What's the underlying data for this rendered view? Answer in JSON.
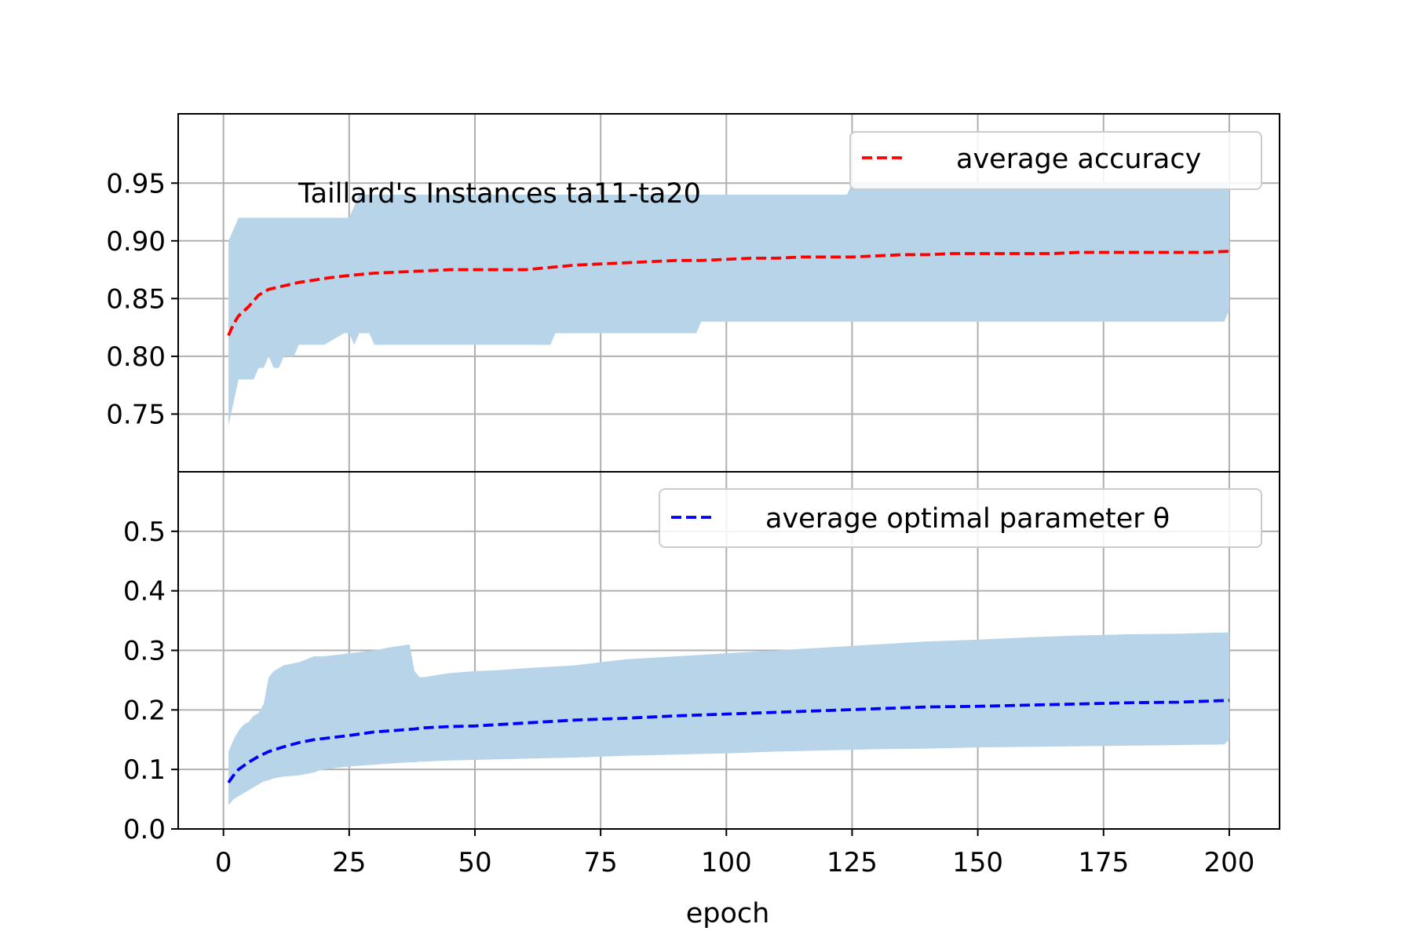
{
  "chart_data": {
    "type": "line",
    "xlabel": "epoch",
    "xlim": [
      -9,
      210
    ],
    "xticks": [
      0,
      25,
      50,
      75,
      100,
      125,
      150,
      175,
      200
    ],
    "xtick_labels": [
      "0",
      "25",
      "50",
      "75",
      "100",
      "125",
      "150",
      "175",
      "200"
    ],
    "grid": true,
    "subplots": [
      {
        "id": "accuracy",
        "annotation": "Taillard's Instances ta11-ta20",
        "ylim": [
          0.7,
          1.01
        ],
        "yticks": [
          0.75,
          0.8,
          0.85,
          0.9,
          0.95
        ],
        "ytick_labels": [
          "0.75",
          "0.80",
          "0.85",
          "0.90",
          "0.95"
        ],
        "legend_position": "upper right",
        "series": [
          {
            "name": "average accuracy",
            "color": "#ff0000",
            "style": "dashed",
            "x": [
              1,
              2,
              3,
              5,
              7,
              9,
              12,
              15,
              18,
              21,
              25,
              30,
              35,
              40,
              45,
              50,
              55,
              60,
              65,
              70,
              75,
              80,
              85,
              90,
              95,
              100,
              105,
              110,
              115,
              120,
              125,
              130,
              135,
              140,
              145,
              150,
              155,
              160,
              165,
              170,
              175,
              180,
              185,
              190,
              195,
              200
            ],
            "y": [
              0.818,
              0.828,
              0.835,
              0.843,
              0.853,
              0.858,
              0.861,
              0.864,
              0.866,
              0.868,
              0.87,
              0.872,
              0.873,
              0.874,
              0.875,
              0.875,
              0.875,
              0.875,
              0.877,
              0.879,
              0.88,
              0.881,
              0.882,
              0.883,
              0.883,
              0.884,
              0.885,
              0.885,
              0.886,
              0.886,
              0.886,
              0.887,
              0.888,
              0.888,
              0.889,
              0.889,
              0.889,
              0.889,
              0.889,
              0.89,
              0.89,
              0.89,
              0.89,
              0.89,
              0.89,
              0.891
            ]
          }
        ],
        "band": {
          "color": "#b8d4e8",
          "x": [
            1,
            2,
            3,
            4,
            6,
            7,
            8,
            9,
            10,
            11,
            12,
            14,
            15,
            16,
            18,
            20,
            24,
            25,
            26,
            27,
            28,
            29,
            30,
            40,
            50,
            60,
            65,
            66,
            67,
            70,
            80,
            90,
            94,
            95,
            100,
            110,
            120,
            124,
            125,
            130,
            150,
            170,
            180,
            190,
            199,
            200
          ],
          "upper": [
            0.9,
            0.91,
            0.92,
            0.92,
            0.92,
            0.92,
            0.92,
            0.92,
            0.92,
            0.92,
            0.92,
            0.92,
            0.92,
            0.92,
            0.92,
            0.92,
            0.92,
            0.92,
            0.93,
            0.94,
            0.94,
            0.94,
            0.94,
            0.94,
            0.94,
            0.94,
            0.94,
            0.94,
            0.94,
            0.94,
            0.94,
            0.94,
            0.94,
            0.94,
            0.94,
            0.94,
            0.94,
            0.94,
            0.95,
            0.95,
            0.95,
            0.95,
            0.95,
            0.95,
            0.95,
            0.95
          ],
          "lower": [
            0.74,
            0.76,
            0.78,
            0.78,
            0.78,
            0.79,
            0.79,
            0.8,
            0.79,
            0.79,
            0.8,
            0.8,
            0.81,
            0.81,
            0.81,
            0.81,
            0.82,
            0.82,
            0.81,
            0.82,
            0.82,
            0.82,
            0.81,
            0.81,
            0.81,
            0.81,
            0.81,
            0.82,
            0.82,
            0.82,
            0.82,
            0.82,
            0.82,
            0.83,
            0.83,
            0.83,
            0.83,
            0.83,
            0.83,
            0.83,
            0.83,
            0.83,
            0.83,
            0.83,
            0.83,
            0.84
          ]
        }
      },
      {
        "id": "theta",
        "ylim": [
          0.0,
          0.6
        ],
        "yticks": [
          0.0,
          0.1,
          0.2,
          0.3,
          0.4,
          0.5
        ],
        "ytick_labels": [
          "0.0",
          "0.1",
          "0.2",
          "0.3",
          "0.4",
          "0.5"
        ],
        "legend_position": "upper right",
        "series": [
          {
            "name": "average optimal parameter θ",
            "color": "#0000ff",
            "style": "dashed",
            "x": [
              1,
              2,
              3,
              5,
              7,
              9,
              12,
              15,
              18,
              21,
              25,
              30,
              35,
              38,
              40,
              45,
              50,
              60,
              70,
              80,
              90,
              100,
              110,
              120,
              130,
              140,
              150,
              160,
              170,
              180,
              190,
              200
            ],
            "y": [
              0.078,
              0.09,
              0.1,
              0.112,
              0.122,
              0.13,
              0.138,
              0.145,
              0.15,
              0.153,
              0.157,
              0.163,
              0.166,
              0.168,
              0.17,
              0.172,
              0.173,
              0.178,
              0.183,
              0.186,
              0.19,
              0.193,
              0.196,
              0.199,
              0.202,
              0.205,
              0.206,
              0.208,
              0.21,
              0.212,
              0.213,
              0.216
            ]
          }
        ],
        "band": {
          "color": "#b8d4e8",
          "x": [
            1,
            2,
            3,
            4,
            5,
            6,
            7,
            8,
            9,
            10,
            12,
            15,
            18,
            19,
            20,
            22,
            25,
            30,
            33,
            37,
            38,
            39,
            40,
            42,
            45,
            50,
            55,
            60,
            70,
            80,
            90,
            100,
            110,
            120,
            130,
            140,
            150,
            160,
            170,
            180,
            190,
            199,
            200
          ],
          "upper": [
            0.13,
            0.15,
            0.165,
            0.175,
            0.18,
            0.19,
            0.195,
            0.21,
            0.255,
            0.265,
            0.275,
            0.28,
            0.29,
            0.29,
            0.29,
            0.292,
            0.295,
            0.3,
            0.305,
            0.31,
            0.265,
            0.255,
            0.255,
            0.258,
            0.262,
            0.265,
            0.267,
            0.27,
            0.275,
            0.285,
            0.29,
            0.295,
            0.3,
            0.305,
            0.31,
            0.315,
            0.318,
            0.322,
            0.325,
            0.327,
            0.328,
            0.33,
            0.33
          ],
          "lower": [
            0.04,
            0.05,
            0.055,
            0.06,
            0.065,
            0.07,
            0.075,
            0.08,
            0.082,
            0.085,
            0.088,
            0.09,
            0.095,
            0.098,
            0.1,
            0.102,
            0.105,
            0.108,
            0.11,
            0.112,
            0.112,
            0.113,
            0.113,
            0.114,
            0.115,
            0.116,
            0.117,
            0.118,
            0.12,
            0.123,
            0.125,
            0.127,
            0.13,
            0.132,
            0.134,
            0.135,
            0.137,
            0.138,
            0.139,
            0.14,
            0.141,
            0.142,
            0.15
          ]
        }
      }
    ]
  }
}
